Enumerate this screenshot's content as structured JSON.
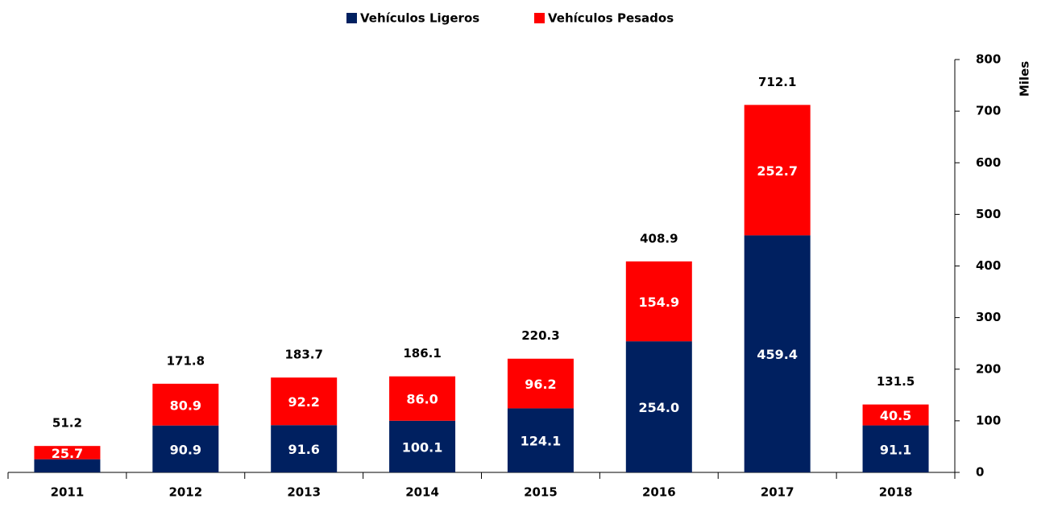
{
  "chart_data": {
    "type": "stacked_bar",
    "categories": [
      "2011",
      "2012",
      "2013",
      "2014",
      "2015",
      "2016",
      "2017",
      "2018"
    ],
    "series": [
      {
        "name": "Vehículos Ligeros",
        "color": "#002060",
        "values": [
          25.5,
          90.9,
          91.6,
          100.1,
          124.1,
          254.0,
          459.4,
          91.1
        ],
        "value_labels": [
          null,
          "90.9",
          "91.6",
          "100.1",
          "124.1",
          "254.0",
          "459.4",
          "91.1"
        ]
      },
      {
        "name": "Vehículos Pesados",
        "color": "#ff0000",
        "values": [
          25.7,
          80.9,
          92.2,
          86.0,
          96.2,
          154.9,
          252.7,
          40.5
        ],
        "value_labels": [
          "25.7",
          "80.9",
          "92.2",
          "86.0",
          "96.2",
          "154.9",
          "252.7",
          "40.5"
        ]
      }
    ],
    "totals": [
      51.2,
      171.8,
      183.7,
      186.1,
      220.3,
      408.9,
      712.1,
      131.5
    ],
    "y_label": "Miles",
    "ylim": [
      0,
      800
    ],
    "yticks": [
      0,
      100,
      200,
      300,
      400,
      500,
      600,
      700,
      800
    ],
    "y_axis_side": "right",
    "legend": "top"
  }
}
